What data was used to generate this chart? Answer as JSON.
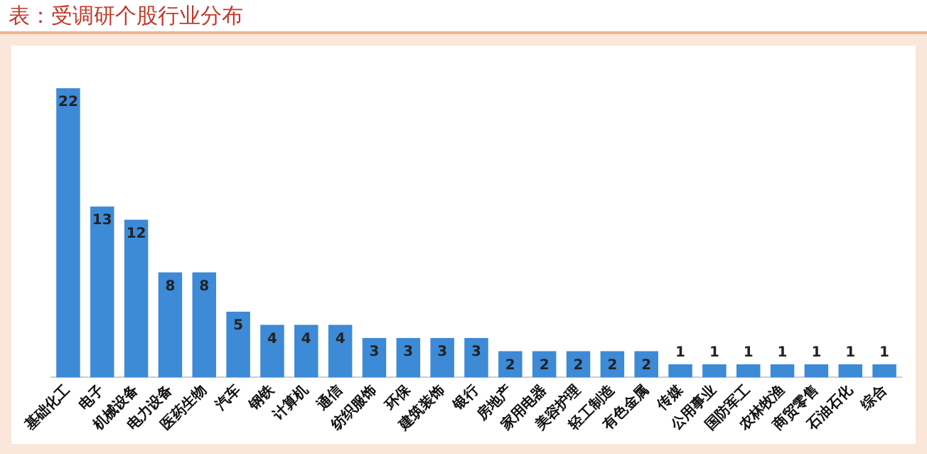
{
  "chart_data": {
    "type": "bar",
    "title": "表：受调研个股行业分布",
    "categories": [
      "基础化工",
      "电子",
      "机械设备",
      "电力设备",
      "医药生物",
      "汽车",
      "钢铁",
      "计算机",
      "通信",
      "纺织服饰",
      "环保",
      "建筑装饰",
      "银行",
      "房地产",
      "家用电器",
      "美容护理",
      "轻工制造",
      "有色金属",
      "传媒",
      "公用事业",
      "国防军工",
      "农林牧渔",
      "商贸零售",
      "石油石化",
      "综合"
    ],
    "values": [
      22,
      13,
      12,
      8,
      8,
      5,
      4,
      4,
      4,
      3,
      3,
      3,
      3,
      2,
      2,
      2,
      2,
      2,
      1,
      1,
      1,
      1,
      1,
      1,
      1
    ],
    "color": "#3d8ad6",
    "data_labels": true,
    "grid": false,
    "legend": false
  }
}
